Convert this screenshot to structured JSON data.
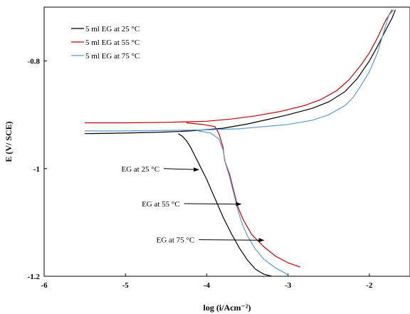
{
  "chart_data": {
    "type": "line",
    "title": "",
    "xlabel": "log (i/Acm⁻²)",
    "ylabel": "E (V/ SCE)",
    "xlim": [
      -6,
      -1.5
    ],
    "ylim": [
      -1.2,
      -0.7
    ],
    "xticks": [
      -6,
      -5,
      -4,
      -3,
      -2
    ],
    "yticks": [
      -0.8,
      -1,
      -1.2
    ],
    "grid": false,
    "legend_position": "top-left",
    "series": [
      {
        "name": "5 ml EG at 25 °C",
        "color": "#000000",
        "points": [
          [
            -5.5,
            -0.935
          ],
          [
            -5.0,
            -0.934
          ],
          [
            -4.5,
            -0.932
          ],
          [
            -4.2,
            -0.93
          ],
          [
            -3.8,
            -0.925
          ],
          [
            -3.5,
            -0.917
          ],
          [
            -3.2,
            -0.907
          ],
          [
            -3.0,
            -0.9
          ],
          [
            -2.7,
            -0.888
          ],
          [
            -2.5,
            -0.876
          ],
          [
            -2.3,
            -0.857
          ],
          [
            -2.15,
            -0.833
          ],
          [
            -2.0,
            -0.8
          ],
          [
            -1.9,
            -0.773
          ],
          [
            -1.8,
            -0.743
          ],
          [
            -1.72,
            -0.72
          ],
          [
            -1.68,
            -0.705
          ]
        ],
        "cathodic": [
          [
            -4.35,
            -0.935
          ],
          [
            -4.3,
            -0.94
          ],
          [
            -4.25,
            -0.948
          ],
          [
            -4.2,
            -0.96
          ],
          [
            -4.15,
            -0.975
          ],
          [
            -4.1,
            -0.99
          ],
          [
            -4.05,
            -1.005
          ],
          [
            -4.0,
            -1.02
          ],
          [
            -3.95,
            -1.038
          ],
          [
            -3.9,
            -1.055
          ],
          [
            -3.8,
            -1.09
          ],
          [
            -3.7,
            -1.12
          ],
          [
            -3.6,
            -1.147
          ],
          [
            -3.5,
            -1.17
          ],
          [
            -3.4,
            -1.187
          ],
          [
            -3.3,
            -1.196
          ],
          [
            -3.2,
            -1.2
          ]
        ]
      },
      {
        "name": "5 ml EG at 55 °C",
        "color": "#c00000",
        "points": [
          [
            -5.5,
            -0.915
          ],
          [
            -5.0,
            -0.915
          ],
          [
            -4.5,
            -0.914
          ],
          [
            -4.0,
            -0.912
          ],
          [
            -3.7,
            -0.908
          ],
          [
            -3.4,
            -0.902
          ],
          [
            -3.1,
            -0.894
          ],
          [
            -2.8,
            -0.883
          ],
          [
            -2.6,
            -0.872
          ],
          [
            -2.4,
            -0.855
          ],
          [
            -2.25,
            -0.835
          ],
          [
            -2.1,
            -0.807
          ],
          [
            -2.0,
            -0.785
          ],
          [
            -1.9,
            -0.757
          ],
          [
            -1.8,
            -0.725
          ],
          [
            -1.72,
            -0.705
          ]
        ],
        "cathodic": [
          [
            -4.25,
            -0.915
          ],
          [
            -4.05,
            -0.918
          ],
          [
            -3.9,
            -0.922
          ],
          [
            -3.85,
            -0.935
          ],
          [
            -3.8,
            -0.96
          ],
          [
            -3.78,
            -0.985
          ],
          [
            -3.72,
            -1.01
          ],
          [
            -3.67,
            -1.04
          ],
          [
            -3.62,
            -1.07
          ],
          [
            -3.55,
            -1.095
          ],
          [
            -3.45,
            -1.122
          ],
          [
            -3.3,
            -1.145
          ],
          [
            -3.15,
            -1.163
          ],
          [
            -3.0,
            -1.175
          ],
          [
            -2.85,
            -1.183
          ]
        ]
      },
      {
        "name": "5 ml EG at 75 °C",
        "color": "#5b9bd5",
        "points": [
          [
            -5.5,
            -0.93
          ],
          [
            -5.0,
            -0.93
          ],
          [
            -4.5,
            -0.929
          ],
          [
            -4.0,
            -0.928
          ],
          [
            -3.6,
            -0.926
          ],
          [
            -3.3,
            -0.922
          ],
          [
            -3.0,
            -0.918
          ],
          [
            -2.7,
            -0.91
          ],
          [
            -2.5,
            -0.9
          ],
          [
            -2.3,
            -0.883
          ],
          [
            -2.2,
            -0.868
          ],
          [
            -2.1,
            -0.845
          ],
          [
            -2.0,
            -0.82
          ],
          [
            -1.9,
            -0.785
          ],
          [
            -1.82,
            -0.745
          ],
          [
            -1.76,
            -0.715
          ],
          [
            -1.7,
            -0.705
          ]
        ],
        "cathodic": [
          [
            -4.1,
            -0.93
          ],
          [
            -3.95,
            -0.934
          ],
          [
            -3.85,
            -0.945
          ],
          [
            -3.8,
            -0.965
          ],
          [
            -3.77,
            -0.99
          ],
          [
            -3.72,
            -1.015
          ],
          [
            -3.67,
            -1.045
          ],
          [
            -3.62,
            -1.075
          ],
          [
            -3.57,
            -1.1
          ],
          [
            -3.5,
            -1.125
          ],
          [
            -3.4,
            -1.15
          ],
          [
            -3.3,
            -1.168
          ],
          [
            -3.15,
            -1.185
          ],
          [
            -3.05,
            -1.193
          ],
          [
            -2.98,
            -1.2
          ]
        ]
      }
    ],
    "annotations": [
      {
        "label": "EG at 25 °C",
        "text_at": [
          -5.05,
          -1.0
        ],
        "arrow_to": [
          -4.1,
          -1.002
        ]
      },
      {
        "label": "EG at 55 °C",
        "text_at": [
          -4.8,
          -1.065
        ],
        "arrow_to": [
          -3.58,
          -1.066
        ]
      },
      {
        "label": "EG at 75 °C",
        "text_at": [
          -4.62,
          -1.132
        ],
        "arrow_to": [
          -3.3,
          -1.133
        ]
      }
    ]
  }
}
